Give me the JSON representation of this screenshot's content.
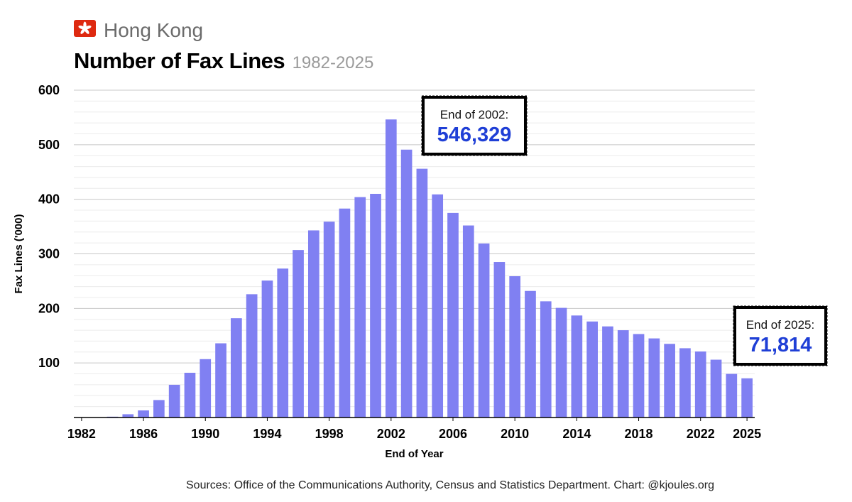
{
  "header": {
    "flag_icon": "hong-kong-flag-icon",
    "region": "Hong Kong",
    "title": "Number of Fax Lines",
    "years": "1982-2025"
  },
  "footer": {
    "source": "Sources: Office of the Communications Authority, Census and Statistics Department. Chart: @kjoules.org"
  },
  "colors": {
    "bar": "#8080f2",
    "callout_value": "#1f3fd6"
  },
  "chart_data": {
    "type": "bar",
    "xlabel": "End of Year",
    "ylabel": "Fax Lines ('000)",
    "ylim": [
      0,
      600
    ],
    "yticks": [
      100,
      200,
      300,
      400,
      500,
      600
    ],
    "xtick_labels": [
      "1982",
      "1986",
      "1990",
      "1994",
      "1998",
      "2002",
      "2006",
      "2010",
      "2014",
      "2018",
      "2022",
      "2025"
    ],
    "grid": "horizontal",
    "categories": [
      1982,
      1983,
      1984,
      1985,
      1986,
      1987,
      1988,
      1989,
      1990,
      1991,
      1992,
      1993,
      1994,
      1995,
      1996,
      1997,
      1998,
      1999,
      2000,
      2001,
      2002,
      2003,
      2004,
      2005,
      2006,
      2007,
      2008,
      2009,
      2010,
      2011,
      2012,
      2013,
      2014,
      2015,
      2016,
      2017,
      2018,
      2019,
      2020,
      2021,
      2022,
      2023,
      2024,
      2025
    ],
    "values": [
      0.3,
      0.6,
      1.5,
      6,
      13,
      32,
      60,
      82,
      107,
      136,
      182,
      226,
      251,
      273,
      307,
      343,
      359,
      383,
      404,
      410,
      546.329,
      491,
      456,
      409,
      375,
      352,
      319,
      285,
      259,
      232,
      213,
      201,
      187,
      176,
      167,
      160,
      153,
      145,
      135,
      127,
      121,
      106,
      80,
      71.814
    ],
    "annotations": [
      {
        "category": 2002,
        "label": "End of 2002:",
        "value_text": "546,329"
      },
      {
        "category": 2025,
        "label": "End of 2025:",
        "value_text": "71,814"
      }
    ]
  }
}
